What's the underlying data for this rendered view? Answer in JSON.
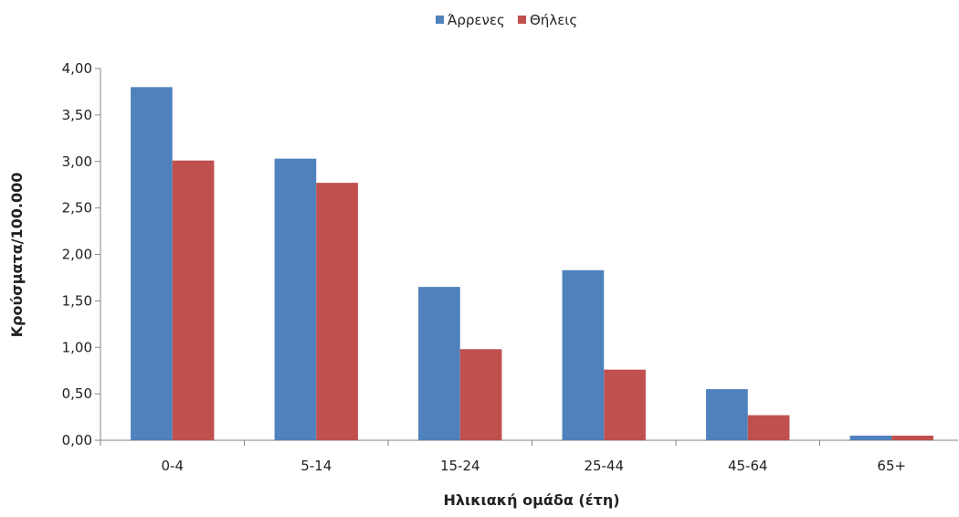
{
  "chart_data": {
    "type": "bar",
    "title": "",
    "xlabel": "Ηλικιακή ομάδα (έτη)",
    "ylabel": "Κρούσματα/100.000",
    "categories": [
      "0-4",
      "5-14",
      "15-24",
      "25-44",
      "45-64",
      "65+"
    ],
    "series": [
      {
        "name": "Άρρενες",
        "color": "#4f81bd",
        "values": [
          3.8,
          3.03,
          1.65,
          1.83,
          0.55,
          0.05
        ]
      },
      {
        "name": "Θήλεις",
        "color": "#c0504d",
        "values": [
          3.01,
          2.77,
          0.98,
          0.76,
          0.27,
          0.05
        ]
      }
    ],
    "ylim": [
      0,
      4
    ],
    "yticks": [
      "0,00",
      "0,50",
      "1,00",
      "1,50",
      "2,00",
      "2,50",
      "3,00",
      "3,50",
      "4,00"
    ],
    "ytick_values": [
      0,
      0.5,
      1,
      1.5,
      2,
      2.5,
      3,
      3.5,
      4
    ],
    "grid": false,
    "legend_position": "top"
  }
}
